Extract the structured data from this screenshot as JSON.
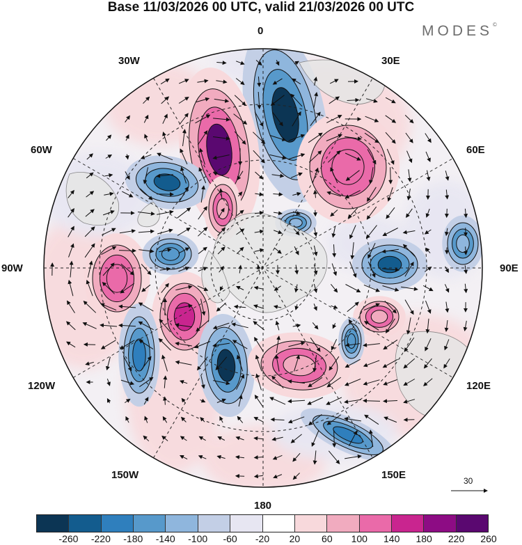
{
  "title": "Base 11/03/2026 00 UTC, valid 21/03/2026 00 UTC",
  "brand": "MODES",
  "brand_mark": "©",
  "longitude_labels": {
    "n": "0",
    "n_e": "30E",
    "e_n": "60E",
    "e": "90E",
    "e_s": "120E",
    "s_e": "150E",
    "s": "180",
    "s_w": "150W",
    "w_s": "120W",
    "w": "90W",
    "w_n": "60W",
    "n_w": "30W"
  },
  "reference_vector": {
    "value": "30",
    "icon": "arrow-right-icon"
  },
  "colorbar": {
    "ticks": [
      "-260",
      "-220",
      "-180",
      "-140",
      "-100",
      "-60",
      "-20",
      "20",
      "60",
      "100",
      "140",
      "180",
      "220",
      "260"
    ],
    "colors": [
      "#0c3554",
      "#135c8e",
      "#2f7fbd",
      "#5799cb",
      "#8fb6dd",
      "#c3cfe6",
      "#e7e6f2",
      "#ffffff",
      "#f8d9dc",
      "#f1abbf",
      "#ea6aa9",
      "#c9258f",
      "#8d0c84",
      "#5a0870"
    ]
  },
  "anomaly_centers": [
    {
      "sign": "negative",
      "value": -220,
      "color": "#0c3554"
    },
    {
      "sign": "positive",
      "value": 220,
      "color": "#5a0870"
    },
    {
      "sign": "negative",
      "value": -140,
      "color": "#135c8e"
    },
    {
      "sign": "positive",
      "value": 140,
      "color": "#ea6aa9"
    },
    {
      "sign": "negative",
      "value": -140,
      "color": "#135c8e"
    },
    {
      "sign": "positive",
      "value": 180,
      "color": "#c9258f"
    },
    {
      "sign": "negative",
      "value": -180,
      "color": "#0c3554"
    },
    {
      "sign": "positive",
      "value": 100,
      "color": "#ea6aa9"
    },
    {
      "sign": "negative",
      "value": -140,
      "color": "#2f7fbd"
    },
    {
      "sign": "positive",
      "value": 100,
      "color": "#f1abbf"
    },
    {
      "sign": "negative",
      "value": -140,
      "color": "#2f7fbd"
    },
    {
      "sign": "positive",
      "value": 100,
      "color": "#f1abbf"
    },
    {
      "sign": "negative",
      "value": -100,
      "color": "#5799cb"
    },
    {
      "sign": "positive",
      "value": 100,
      "color": "#f1abbf"
    },
    {
      "sign": "negative",
      "value": -100,
      "color": "#5799cb"
    },
    {
      "sign": "negative",
      "value": -100,
      "color": "#8fb6dd"
    },
    {
      "sign": "negative",
      "value": -100,
      "color": "#8fb6dd"
    }
  ]
}
